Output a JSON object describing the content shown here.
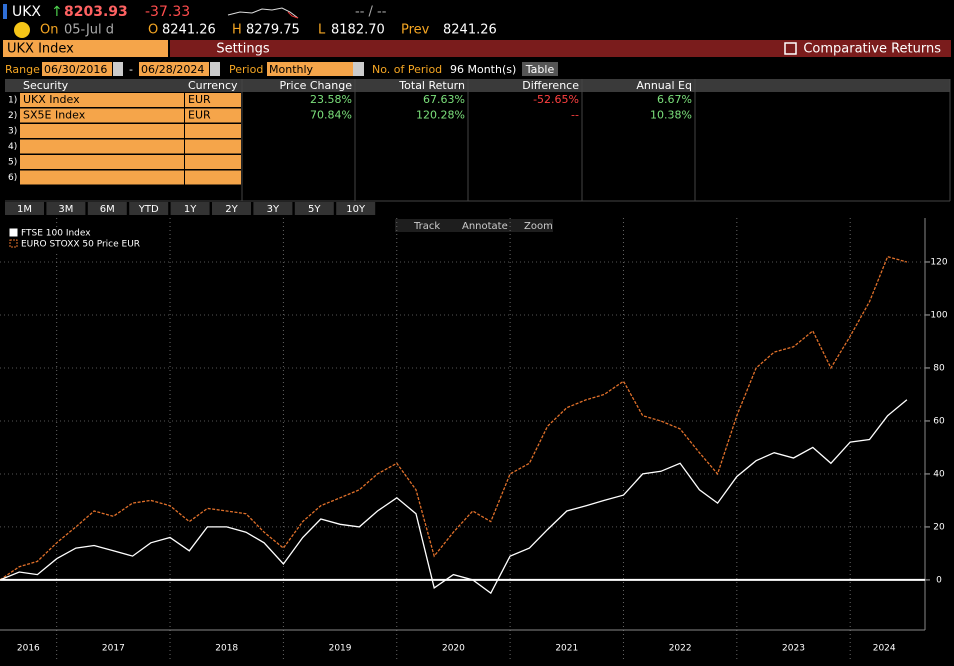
{
  "header": {
    "ticker": "UKX",
    "arrow": "↑",
    "last": "8203.93",
    "change": "-37.33",
    "range": "-- / --",
    "on": "On",
    "date": "05-Jul d",
    "open_label": "O",
    "open": "8241.26",
    "high_label": "H",
    "high": "8279.75",
    "low_label": "L",
    "low": "8182.70",
    "prev_label": "Prev",
    "prev": "8241.26"
  },
  "toolbar": {
    "security": "UKX Index",
    "settings": "Settings",
    "comparative": "Comparative Returns"
  },
  "range_row": {
    "range_label": "Range",
    "start": "06/30/2016",
    "dash": "-",
    "end": "06/28/2024",
    "period_label": "Period",
    "period": "Monthly",
    "count_label": "No. of Period",
    "count": "96 Month(s)",
    "view": "Table"
  },
  "table": {
    "columns": [
      "Security",
      "Currency",
      "Price Change",
      "Total Return",
      "Difference",
      "Annual Eq"
    ],
    "rows": [
      [
        "1)",
        "UKX Index",
        "EUR",
        "23.58%",
        "67.63%",
        "-52.65%",
        "6.67%"
      ],
      [
        "2)",
        "SX5E Index",
        "EUR",
        "70.84%",
        "120.28%",
        "--",
        "10.38%"
      ]
    ],
    "empty_rows": [
      "3)",
      "4)",
      "5)",
      "6)"
    ]
  },
  "period_buttons": [
    "1M",
    "3M",
    "6M",
    "YTD",
    "1Y",
    "2Y",
    "3Y",
    "5Y",
    "10Y"
  ],
  "chart_tools": [
    "Track",
    "Annotate",
    "Zoom"
  ],
  "chart_data": {
    "type": "line",
    "x": [
      2016.5,
      2016.67,
      2016.83,
      2017.0,
      2017.17,
      2017.33,
      2017.5,
      2017.67,
      2017.83,
      2018.0,
      2018.17,
      2018.33,
      2018.5,
      2018.67,
      2018.83,
      2019.0,
      2019.17,
      2019.33,
      2019.5,
      2019.67,
      2019.83,
      2020.0,
      2020.17,
      2020.33,
      2020.5,
      2020.67,
      2020.83,
      2021.0,
      2021.17,
      2021.33,
      2021.5,
      2021.67,
      2021.83,
      2022.0,
      2022.17,
      2022.33,
      2022.5,
      2022.67,
      2022.83,
      2023.0,
      2023.17,
      2023.33,
      2023.5,
      2023.67,
      2023.83,
      2024.0,
      2024.17,
      2024.33,
      2024.5
    ],
    "series": [
      {
        "name": "FTSE 100 Index",
        "color": "#ffffff",
        "style": "solid",
        "values": [
          0,
          3,
          2,
          8,
          12,
          13,
          11,
          9,
          14,
          16,
          11,
          20,
          20,
          18,
          14,
          6,
          16,
          23,
          21,
          20,
          26,
          31,
          25,
          -3,
          2,
          0,
          -5,
          9,
          12,
          19,
          26,
          28,
          30,
          32,
          40,
          41,
          44,
          34,
          29,
          39,
          45,
          48,
          46,
          50,
          44,
          52,
          53,
          62,
          68
        ]
      },
      {
        "name": "EURO STOXX 50 Price EUR",
        "color": "#e0702a",
        "style": "dashed",
        "values": [
          0,
          5,
          7,
          14,
          20,
          26,
          24,
          29,
          30,
          28,
          22,
          27,
          26,
          25,
          18,
          12,
          22,
          28,
          31,
          34,
          40,
          44,
          34,
          9,
          18,
          26,
          22,
          40,
          44,
          58,
          65,
          68,
          70,
          75,
          62,
          60,
          57,
          48,
          40,
          62,
          80,
          86,
          88,
          94,
          80,
          92,
          105,
          122,
          120
        ]
      }
    ],
    "xlim": [
      2016.5,
      2024.66
    ],
    "xticks": [
      {
        "value": 2016.75,
        "label": "2016"
      },
      {
        "value": 2017.5,
        "label": "2017"
      },
      {
        "value": 2018.5,
        "label": "2018"
      },
      {
        "value": 2019.5,
        "label": "2019"
      },
      {
        "value": 2020.5,
        "label": "2020"
      },
      {
        "value": 2021.5,
        "label": "2021"
      },
      {
        "value": 2022.5,
        "label": "2022"
      },
      {
        "value": 2023.5,
        "label": "2023"
      },
      {
        "value": 2024.3,
        "label": "2024"
      }
    ],
    "xgrid": [
      2017,
      2018,
      2019,
      2020,
      2021,
      2022,
      2023,
      2024
    ],
    "ylim": [
      -18.9,
      136.6
    ],
    "yticks": [
      0,
      20,
      40,
      60,
      80,
      100,
      120
    ],
    "grid": true,
    "legend": "top-left"
  }
}
